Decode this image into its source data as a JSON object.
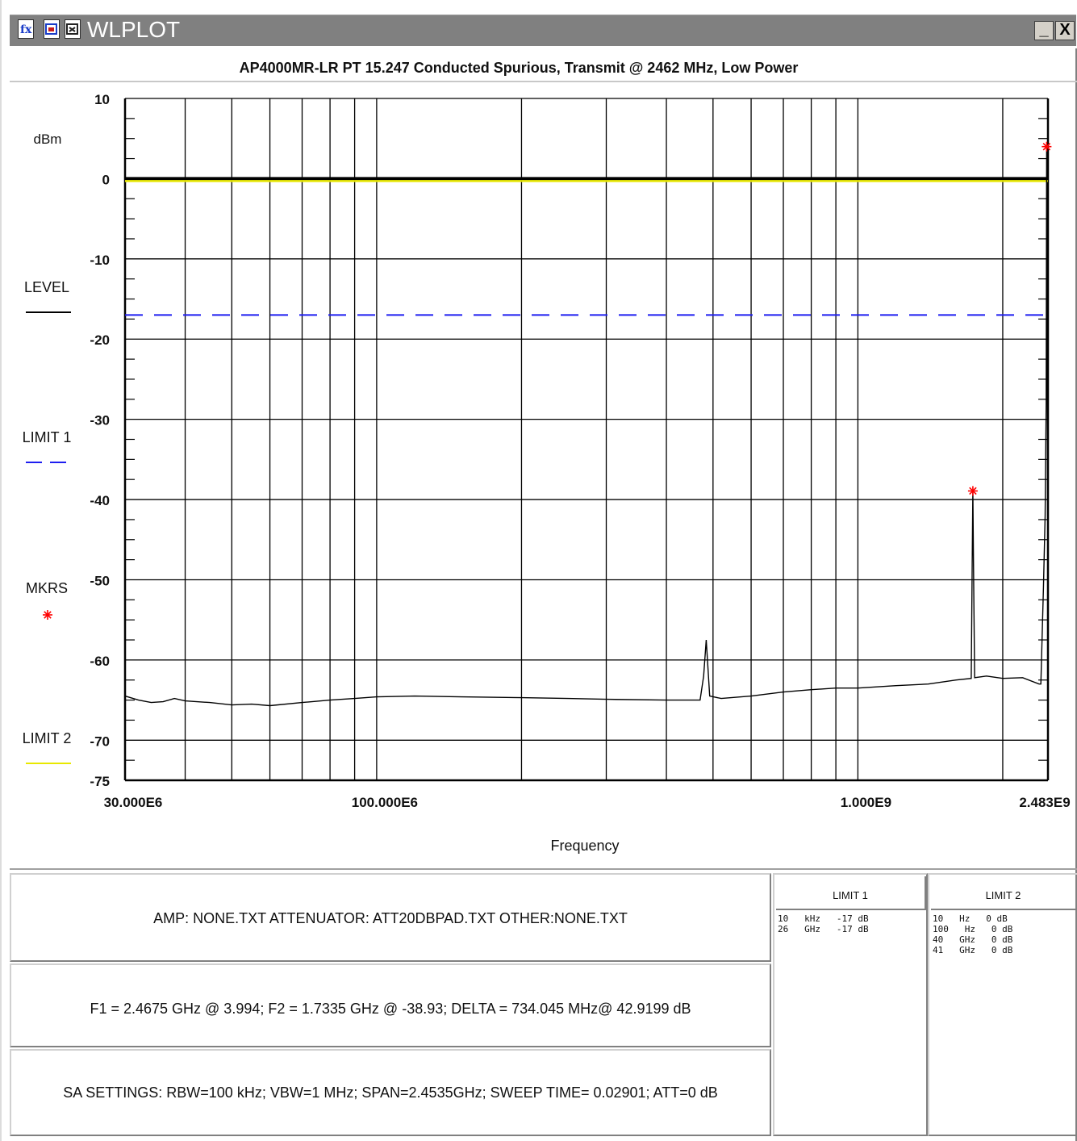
{
  "window": {
    "title": "WLPLOT",
    "minimize_label": "_",
    "close_label": "X"
  },
  "chart_data": {
    "type": "line",
    "title": "AP4000MR-LR PT 15.247 Conducted Spurious, Transmit @ 2462 MHz, Low Power",
    "xlabel": "Frequency",
    "ylabel": "dBm",
    "x_scale": "log",
    "xlim": [
      30000000,
      2483000000
    ],
    "ylim": [
      -75,
      10
    ],
    "x_tick_labels": [
      {
        "value": 30000000,
        "label": "30.000E6"
      },
      {
        "value": 100000000,
        "label": "100.000E6"
      },
      {
        "value": 1000000000,
        "label": "1.000E9"
      },
      {
        "value": 2483000000,
        "label": "2.483E9"
      }
    ],
    "y_ticks": [
      10,
      0,
      -10,
      -20,
      -30,
      -40,
      -50,
      -60,
      -70,
      -75
    ],
    "grid": true,
    "series": [
      {
        "name": "LEVEL",
        "color": "#000000",
        "x": [
          30000000,
          32000000,
          34000000,
          36000000,
          38000000,
          40000000,
          45000000,
          50000000,
          55000000,
          60000000,
          70000000,
          80000000,
          90000000,
          100000000,
          120000000,
          150000000,
          200000000,
          250000000,
          300000000,
          400000000,
          470000000,
          478000000,
          484000000,
          492000000,
          520000000,
          600000000,
          700000000,
          800000000,
          900000000,
          1000000000,
          1200000000,
          1400000000,
          1600000000,
          1720000000,
          1728000000,
          1733500000,
          1739000000,
          1748000000,
          1850000000,
          2000000000,
          2200000000,
          2380000000,
          2400000000,
          2430000000,
          2450000000,
          2462000000,
          2467500000,
          2472000000,
          2483000000
        ],
        "y": [
          -64.5,
          -65,
          -65.3,
          -65.2,
          -64.8,
          -65.1,
          -65.3,
          -65.6,
          -65.5,
          -65.7,
          -65.3,
          -65,
          -64.8,
          -64.6,
          -64.5,
          -64.6,
          -64.7,
          -64.8,
          -64.9,
          -65,
          -65,
          -62,
          -57.5,
          -64.5,
          -64.8,
          -64.5,
          -64,
          -63.7,
          -63.5,
          -63.5,
          -63.2,
          -63,
          -62.5,
          -62.3,
          -48,
          -38.93,
          -48,
          -62.2,
          -62,
          -62.3,
          -62.2,
          -63,
          -63,
          -51,
          -42,
          -28,
          3.994,
          -10,
          -55
        ]
      },
      {
        "name": "LIMIT 1",
        "color": "#1e1ef0",
        "x": [
          30000000,
          2483000000
        ],
        "y": [
          -17,
          -17
        ]
      },
      {
        "name": "LIMIT 2",
        "color": "#e8e800",
        "x": [
          30000000,
          2483000000
        ],
        "y": [
          0,
          0
        ]
      }
    ],
    "markers": [
      {
        "x": 2467500000,
        "y": 3.994
      },
      {
        "x": 1733500000,
        "y": -38.93
      }
    ],
    "legend": [
      {
        "label": "LEVEL",
        "color": "#000000",
        "style": "solid"
      },
      {
        "label": "LIMIT 1",
        "color": "#1e1ef0",
        "style": "dashed"
      },
      {
        "label": "MKRS",
        "color": "#ff0000",
        "style": "marker"
      },
      {
        "label": "LIMIT 2",
        "color": "#e8e800",
        "style": "solid"
      }
    ],
    "legend_placement": "left"
  },
  "info": {
    "amp_line": "AMP: NONE.TXT ATTENUATOR: ATT20DBPAD.TXT OTHER:NONE.TXT",
    "marker_line": "F1 = 2.4675 GHz @ 3.994;   F2 = 1.7335 GHz @ -38.93;   DELTA = 734.045 MHz@ 42.9199 dB",
    "sa_line": "SA SETTINGS: RBW=100 kHz; VBW=1 MHz; SPAN=2.4535GHz; SWEEP TIME= 0.02901; ATT=0 dB"
  },
  "limit1_table": {
    "title": "LIMIT 1",
    "rows": [
      "10   kHz   -17 dB",
      "26   GHz   -17 dB"
    ]
  },
  "limit2_table": {
    "title": "LIMIT 2",
    "rows": [
      "10   Hz   0 dB",
      "100   Hz   0 dB",
      "40   GHz   0 dB",
      "41   GHz   0 dB"
    ]
  }
}
